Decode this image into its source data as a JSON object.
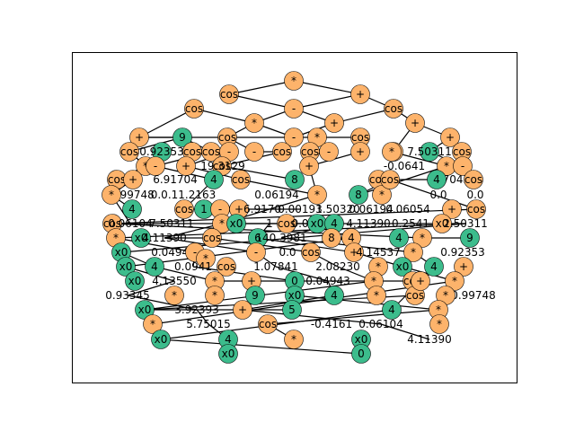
{
  "colors": {
    "operator": "#fdb36b",
    "operand": "#3cbc8c",
    "edge": "#000000"
  },
  "labels": [
    "*",
    "cos",
    "-",
    "+",
    "cos",
    "*",
    "-",
    "+",
    "cos",
    "+",
    "9",
    "cos",
    "-",
    "*",
    "-",
    "cos",
    "+",
    "*",
    "+",
    "cos",
    "0.92353",
    "cos",
    "cos",
    "-",
    "cos",
    "cos",
    "+",
    "*",
    "7.50311",
    "cos",
    "*",
    "-",
    "+",
    "cos",
    "-0.0641",
    "*",
    "0.70430",
    "-",
    "cos",
    "6.91704",
    "4",
    "19.3129",
    "cos",
    "+",
    "8",
    "cos",
    "4",
    "cos",
    "+",
    "0.99748",
    "0.0.11.2163",
    "0.06194",
    "*",
    "8",
    "*",
    "cos",
    "0.0",
    "0.0",
    "*",
    "4",
    "cos",
    "1",
    "-",
    "+",
    "6.9170",
    "0.00193",
    "1.50320",
    "0.06194",
    "0.06054",
    "+",
    "cos",
    "cos",
    "0.06104",
    "7.50311",
    "*",
    "x0",
    "1",
    "cos",
    "0.0",
    "x0",
    "4",
    "4.11390",
    "0.2541",
    "1.3",
    "x0",
    "2.50311",
    "*",
    "x0",
    "4.11390",
    "cos",
    "6",
    "140.3981",
    "8",
    "4",
    "4",
    "*",
    "9",
    "x0",
    "0.04943",
    "-",
    "0.0",
    "*",
    "-",
    "cos",
    "+",
    "4.14537",
    "*",
    "0.92353",
    "x0",
    "4",
    "0.0941",
    "cos",
    "1.07841",
    "2.08230",
    "*",
    "x0",
    "4",
    "+",
    "x0",
    "4.13550",
    "*",
    "+",
    "0",
    "0.04943",
    "*",
    "cos",
    "*",
    "cos",
    "0.99748",
    "0.93345",
    "*",
    "*",
    "9",
    "x0",
    "4",
    "*",
    "+",
    "*",
    "3.92393",
    "x0",
    "+",
    "5",
    "4",
    "*",
    "*",
    "5.75015",
    "cos",
    "-0.4161",
    "0.06104",
    "*",
    "x0",
    "4",
    "*",
    "x0",
    "4.11390",
    "x0",
    "0"
  ]
}
